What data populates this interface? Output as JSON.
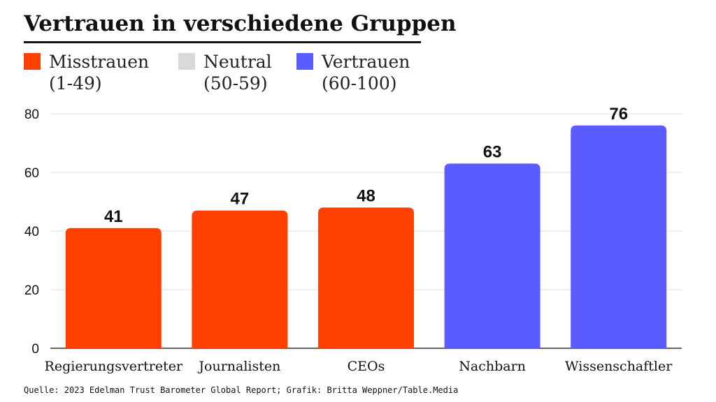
{
  "chart_data": {
    "type": "bar",
    "title": "Vertrauen in verschiedene Gruppen",
    "categories": [
      "Regierungsvertreter",
      "Journalisten",
      "CEOs",
      "Nachbarn",
      "Wissenschaftler"
    ],
    "values": [
      41,
      47,
      48,
      63,
      76
    ],
    "bar_colors": [
      "#ff4000",
      "#ff4000",
      "#ff4000",
      "#5a5cff",
      "#5a5cff"
    ],
    "value_labels": [
      "41",
      "47",
      "48",
      "63",
      "76"
    ],
    "ylim": [
      0,
      80
    ],
    "yticks": [
      0,
      20,
      40,
      60,
      80
    ],
    "ytick_labels": [
      "0",
      "20",
      "40",
      "60",
      "80"
    ],
    "xlabel": "",
    "ylabel": "",
    "grid": true,
    "legend": [
      {
        "label": "Misstrauen",
        "range": "(1-49)",
        "color": "#ff4000"
      },
      {
        "label": "Neutral",
        "range": "(50-59)",
        "color": "#d9d9d9"
      },
      {
        "label": "Vertrauen",
        "range": "(60-100)",
        "color": "#5a5cff"
      }
    ],
    "legend_position": "top-left"
  },
  "source": "Quelle: 2023 Edelman Trust Barometer Global Report; Grafik: Britta Weppner/Table.Media"
}
